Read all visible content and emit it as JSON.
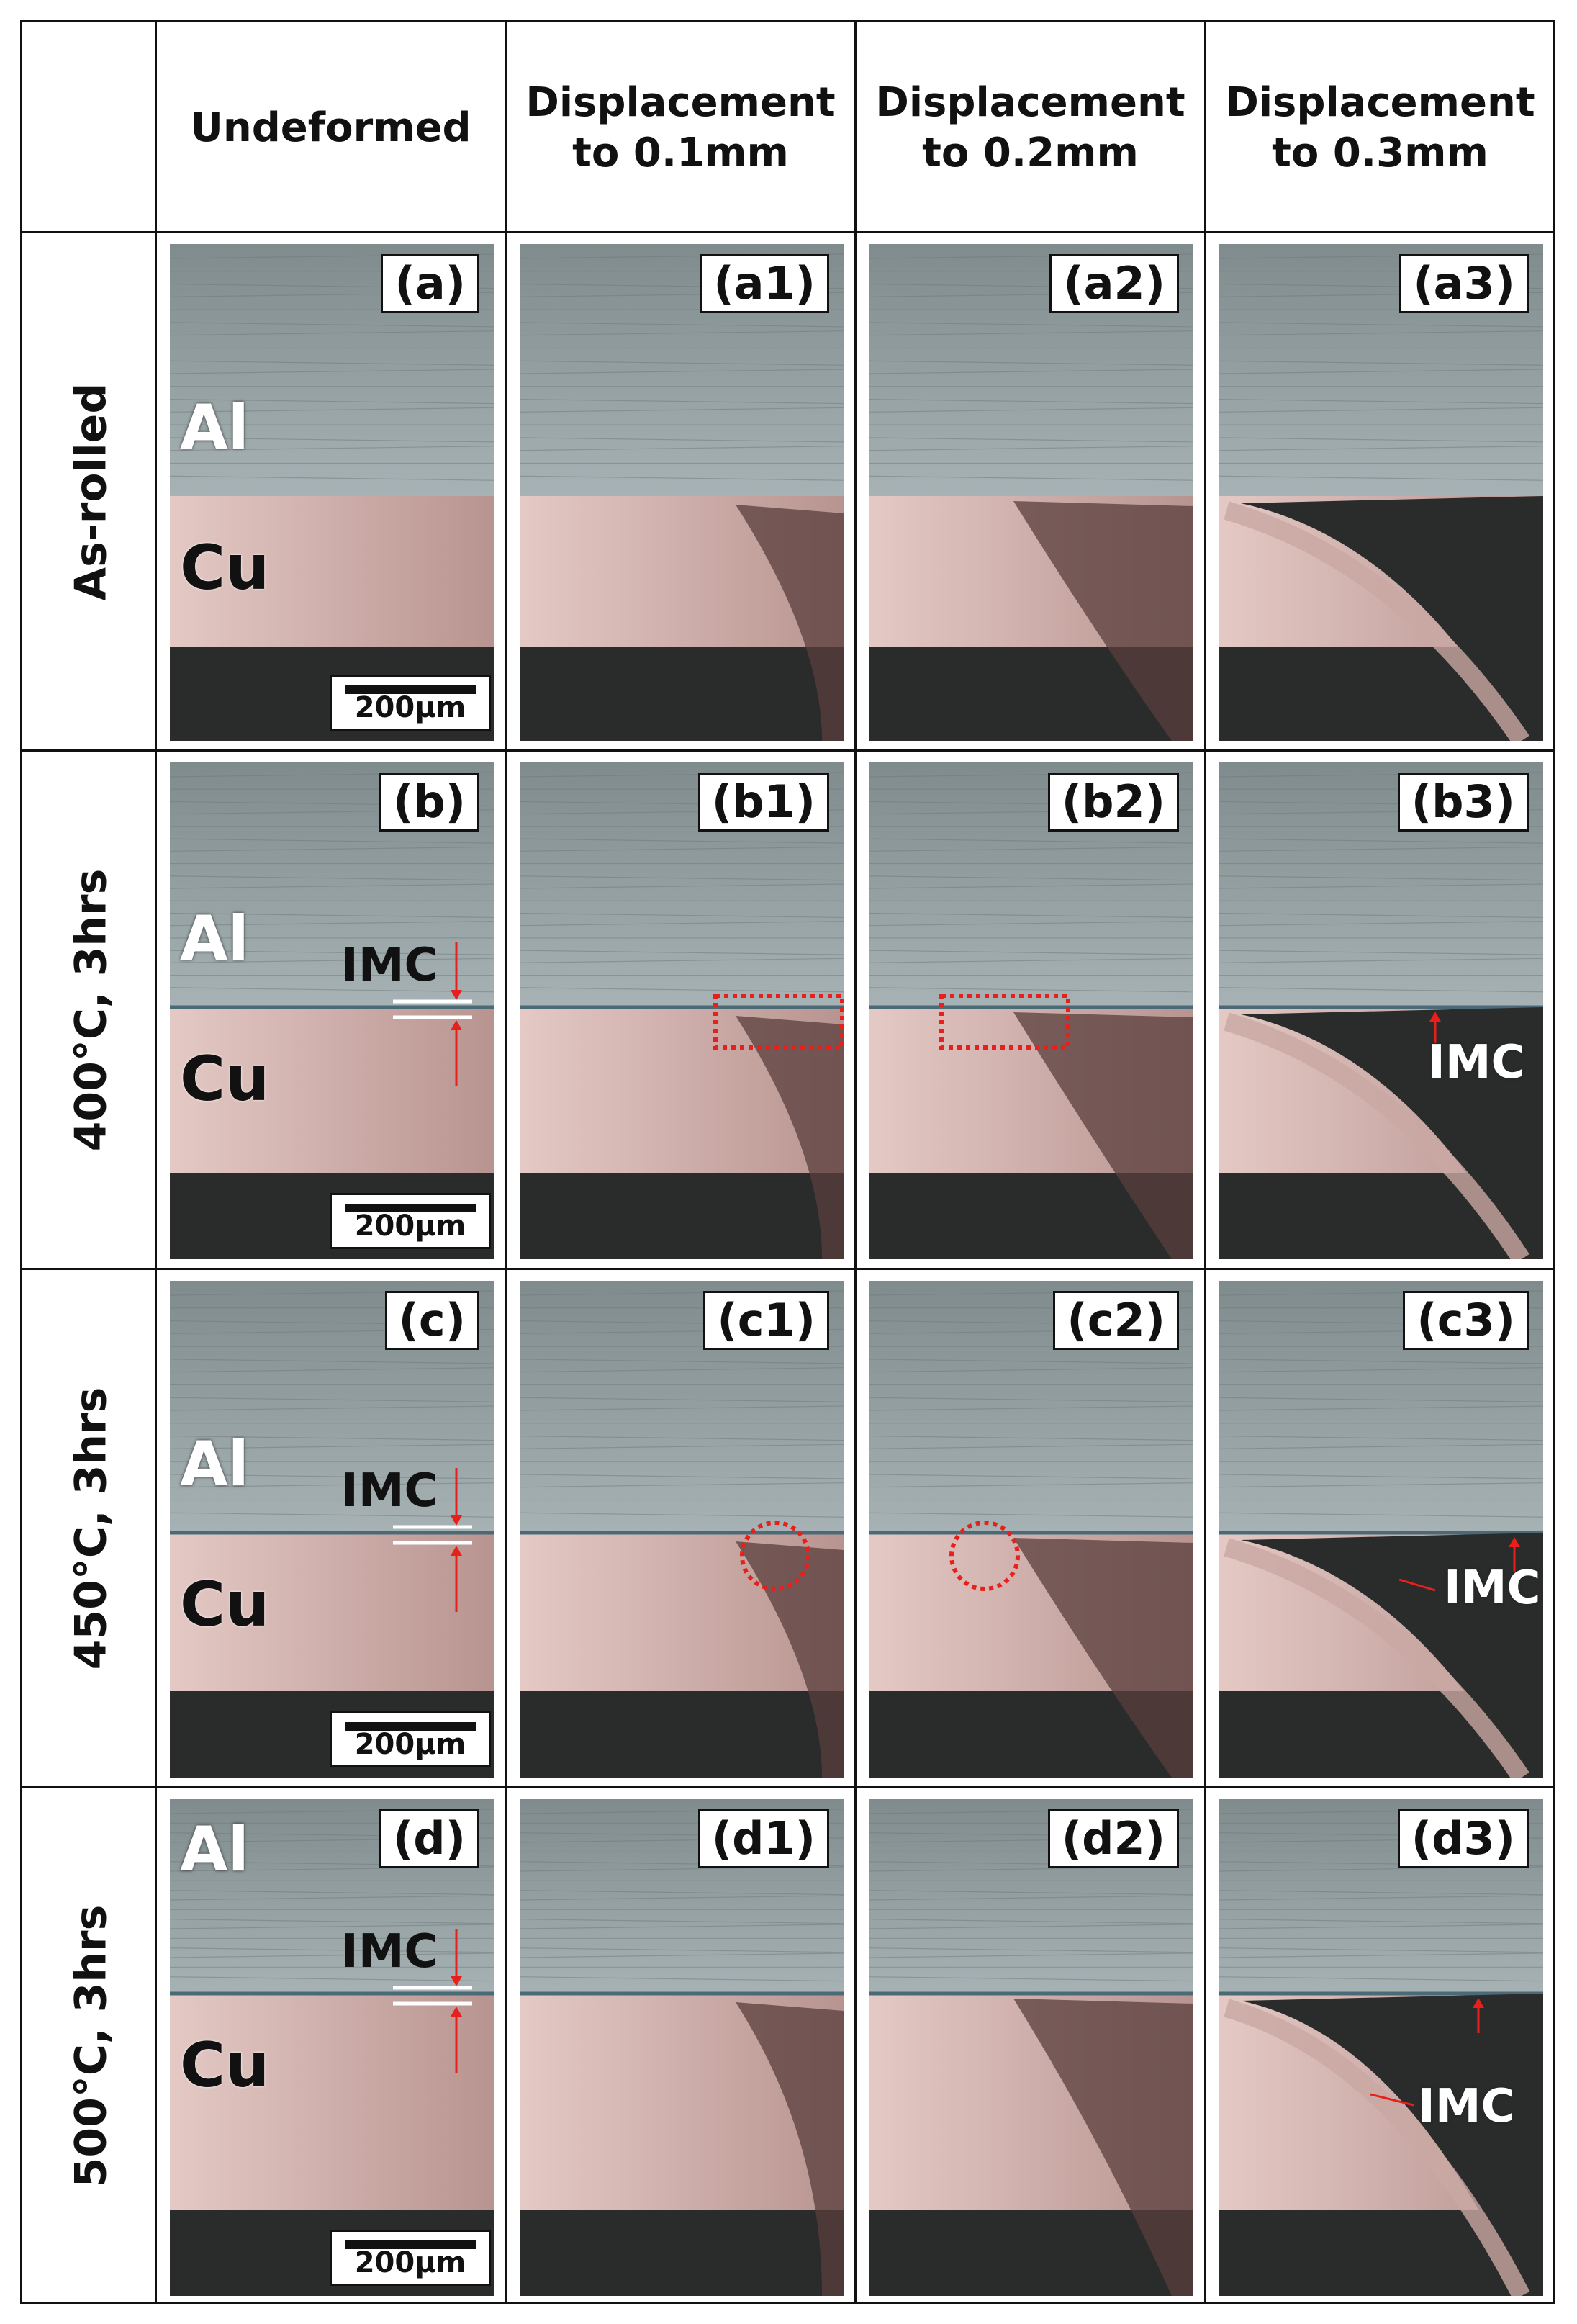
{
  "column_headers": [
    "Undeformed",
    "Displacement\nto 0.1mm",
    "Displacement\nto 0.2mm",
    "Displacement\nto 0.3mm"
  ],
  "row_headers": [
    "As-rolled",
    "400°C, 3hrs",
    "450°C, 3hrs",
    "500°C, 3hrs"
  ],
  "panel_labels": [
    [
      "(a)",
      "(a1)",
      "(a2)",
      "(a3)"
    ],
    [
      "(b)",
      "(b1)",
      "(b2)",
      "(b3)"
    ],
    [
      "(c)",
      "(c1)",
      "(c2)",
      "(c3)"
    ],
    [
      "(d)",
      "(d1)",
      "(d2)",
      "(d3)"
    ]
  ],
  "material_labels": {
    "al": "Al",
    "cu": "Cu"
  },
  "scale_bar": "200μm",
  "imc_label": "IMC",
  "colors": {
    "al": "#8e9aa0",
    "cu": "#d8b8b4",
    "dark": "#2a2b2b",
    "annotation": "#e8201c",
    "frame": "#111111"
  }
}
